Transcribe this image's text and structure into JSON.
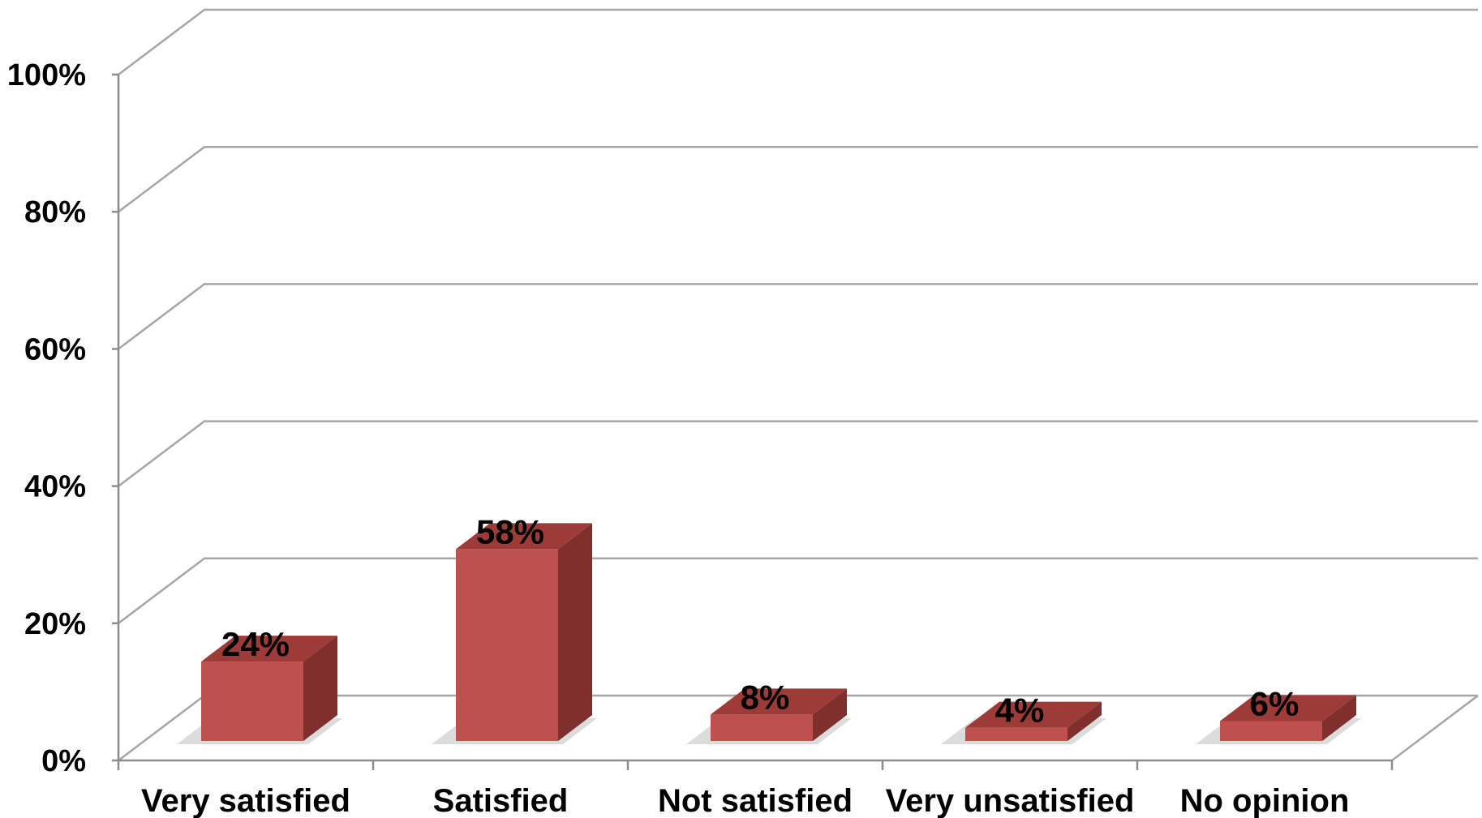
{
  "chart_data": {
    "type": "bar",
    "style": "3d-column",
    "categories": [
      "Very satisfied",
      "Satisfied",
      "Not satisfied",
      "Very unsatisfied",
      "No opinion"
    ],
    "values": [
      24,
      58,
      8,
      4,
      6
    ],
    "data_labels": [
      "24%",
      "58%",
      "8%",
      "4%",
      "6%"
    ],
    "y_ticks": [
      "0%",
      "20%",
      "40%",
      "60%",
      "80%",
      "100%"
    ],
    "ylim": [
      0,
      100
    ],
    "grid": true,
    "legend": "none",
    "colors": {
      "bar_front": "#c0504d",
      "bar_top": "#9c3b38",
      "bar_side": "#7f2f2e",
      "gridline": "#a6a6a6",
      "shadow": "#d0d0d0"
    }
  }
}
